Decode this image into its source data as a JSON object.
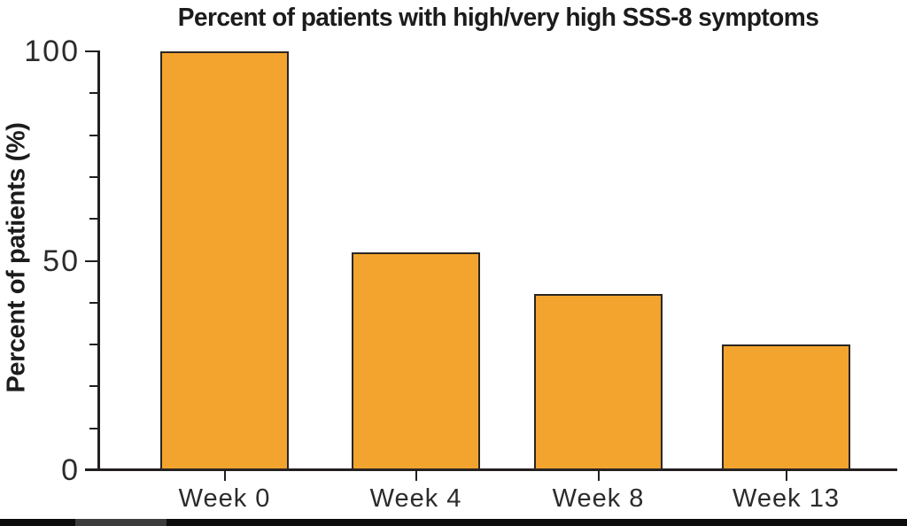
{
  "figure": {
    "bottom_bar": {
      "color": "#0c0c0c",
      "accent_color": "#3c3c3c"
    }
  },
  "chart_data": {
    "type": "bar",
    "title": "Percent of patients with high/very high SSS-8 symptoms",
    "xlabel": "",
    "ylabel": "Percent of patients (%)",
    "categories": [
      "Week 0",
      "Week 4",
      "Week 8",
      "Week 13"
    ],
    "values": [
      100,
      52,
      42,
      30
    ],
    "ylim": [
      0,
      100
    ],
    "y_major_ticks": [
      0,
      50,
      100
    ],
    "y_minor_tick_step": 10,
    "grid": false,
    "legend": false,
    "bar_fill": "#F2A42E",
    "bar_border": "#2A2522",
    "axis_color": "#231F20",
    "text_color": "#2B2B2B",
    "background": "#FFFFFF"
  }
}
